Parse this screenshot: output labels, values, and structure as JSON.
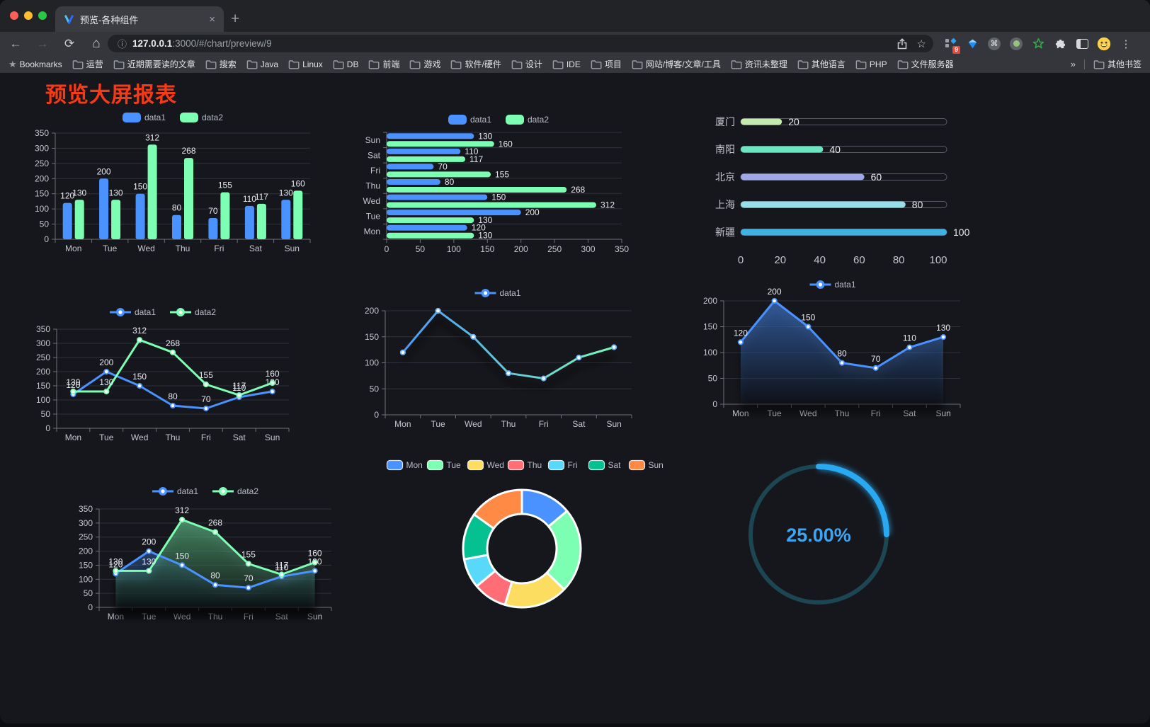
{
  "browser": {
    "tab": {
      "title": "预览-各种组件",
      "close": "×",
      "new_tab": "+"
    },
    "address": {
      "info_icon": "ⓘ",
      "host": "127.0.0.1",
      "rest": ":3000/#/chart/preview/9"
    },
    "icons": {
      "back": "←",
      "forward": "→",
      "reload": "⟳",
      "home": "⌂",
      "star": "☆",
      "menu": "⋮",
      "overflow": "»",
      "bookmarks_star": "★",
      "command": "⌘"
    },
    "extension_badge": "9",
    "bookmarks_bar": {
      "label": "Bookmarks",
      "folders": [
        "运营",
        "近期需要读的文章",
        "搜索",
        "Java",
        "Linux",
        "DB",
        "前端",
        "游戏",
        "软件/硬件",
        "设计",
        "IDE",
        "项目",
        "网站/博客/文章/工具",
        "资讯未整理",
        "其他语言",
        "PHP",
        "文件服务器"
      ],
      "other": "其他书签"
    }
  },
  "page": {
    "title": "预览大屏报表"
  },
  "chart_data": [
    {
      "id": "weekday-grouped-bar",
      "type": "bar",
      "categories": [
        "Mon",
        "Tue",
        "Wed",
        "Thu",
        "Fri",
        "Sat",
        "Sun"
      ],
      "series": [
        {
          "name": "data1",
          "color": "#4992ff",
          "values": [
            120,
            200,
            150,
            80,
            70,
            110,
            130
          ]
        },
        {
          "name": "data2",
          "color": "#7cffb2",
          "values": [
            130,
            130,
            312,
            268,
            155,
            117,
            160
          ]
        }
      ],
      "ylim": [
        0,
        350
      ],
      "ytick_step": 50,
      "legend_position": "top",
      "value_labels": true,
      "grid": true
    },
    {
      "id": "weekday-horizontal-bar",
      "type": "horizontal-bar",
      "categories": [
        "Mon",
        "Tue",
        "Wed",
        "Thu",
        "Fri",
        "Sat",
        "Sun"
      ],
      "series": [
        {
          "name": "data1",
          "color": "#4992ff",
          "values": [
            120,
            200,
            150,
            80,
            70,
            110,
            130
          ]
        },
        {
          "name": "data2",
          "color": "#7cffb2",
          "values": [
            130,
            130,
            312,
            268,
            155,
            117,
            160
          ]
        }
      ],
      "xlim": [
        0,
        350
      ],
      "xtick_step": 50,
      "legend_position": "top",
      "value_labels": true,
      "grid": true
    },
    {
      "id": "city-progress",
      "type": "progress-bar",
      "max": 100,
      "xticks": [
        0,
        20,
        40,
        60,
        80,
        100
      ],
      "items": [
        {
          "label": "厦门",
          "value": 20,
          "color": "#c4ebad"
        },
        {
          "label": "南阳",
          "value": 40,
          "color": "#6be6c1"
        },
        {
          "label": "北京",
          "value": 60,
          "color": "#a0a7e6"
        },
        {
          "label": "上海",
          "value": 80,
          "color": "#96dee8"
        },
        {
          "label": "新疆",
          "value": 100,
          "color": "#3fb1e3"
        }
      ]
    },
    {
      "id": "weekday-dual-line",
      "type": "line",
      "categories": [
        "Mon",
        "Tue",
        "Wed",
        "Thu",
        "Fri",
        "Sat",
        "Sun"
      ],
      "series": [
        {
          "name": "data1",
          "color": "#4992ff",
          "values": [
            120,
            200,
            150,
            80,
            70,
            110,
            130
          ]
        },
        {
          "name": "data2",
          "color": "#7cffb2",
          "values": [
            130,
            130,
            312,
            268,
            155,
            117,
            160
          ]
        }
      ],
      "ylim": [
        0,
        350
      ],
      "ytick_step": 50,
      "legend_position": "top",
      "value_labels": true,
      "grid": true
    },
    {
      "id": "gradient-line",
      "type": "line",
      "categories": [
        "Mon",
        "Tue",
        "Wed",
        "Thu",
        "Fri",
        "Sat",
        "Sun"
      ],
      "series": [
        {
          "name": "data1",
          "gradient": [
            "#4992ff",
            "#7cffb2"
          ],
          "values": [
            120,
            200,
            150,
            80,
            70,
            110,
            130
          ]
        }
      ],
      "ylim": [
        0,
        200
      ],
      "ytick_step": 50,
      "legend_position": "top",
      "value_labels": false,
      "shadow": true,
      "grid": true
    },
    {
      "id": "weekday-area-single",
      "type": "area",
      "categories": [
        "Mon",
        "Tue",
        "Wed",
        "Thu",
        "Fri",
        "Sat",
        "Sun"
      ],
      "series": [
        {
          "name": "data1",
          "color": "#4992ff",
          "values": [
            120,
            200,
            150,
            80,
            70,
            110,
            130
          ]
        }
      ],
      "ylim": [
        0,
        200
      ],
      "ytick_step": 50,
      "legend_position": "top",
      "value_labels": true,
      "shadow": true,
      "grid": true
    },
    {
      "id": "weekday-area-dual",
      "type": "area",
      "categories": [
        "Mon",
        "Tue",
        "Wed",
        "Thu",
        "Fri",
        "Sat",
        "Sun"
      ],
      "series": [
        {
          "name": "data1",
          "color": "#4992ff",
          "values": [
            120,
            200,
            150,
            80,
            70,
            110,
            130
          ]
        },
        {
          "name": "data2",
          "color": "#7cffb2",
          "values": [
            130,
            130,
            312,
            268,
            155,
            117,
            160
          ]
        }
      ],
      "ylim": [
        0,
        350
      ],
      "ytick_step": 50,
      "legend_position": "top",
      "value_labels": true,
      "shadow": true,
      "grid": true
    },
    {
      "id": "weekday-donut",
      "type": "pie",
      "legend_position": "top",
      "slices": [
        {
          "label": "Mon",
          "value": 120,
          "color": "#4992ff"
        },
        {
          "label": "Tue",
          "value": 200,
          "color": "#7cffb2"
        },
        {
          "label": "Wed",
          "value": 150,
          "color": "#fddd60"
        },
        {
          "label": "Thu",
          "value": 80,
          "color": "#ff6e76"
        },
        {
          "label": "Fri",
          "value": 70,
          "color": "#58d9f9"
        },
        {
          "label": "Sat",
          "value": 110,
          "color": "#05c091"
        },
        {
          "label": "Sun",
          "value": 130,
          "color": "#ff8a45"
        }
      ]
    },
    {
      "id": "percent-gauge",
      "type": "gauge",
      "value": 25,
      "max": 100,
      "label": "25.00%",
      "color": "#29a9f2",
      "track_color": "#1d4653",
      "text_color": "#3da5f1"
    }
  ]
}
